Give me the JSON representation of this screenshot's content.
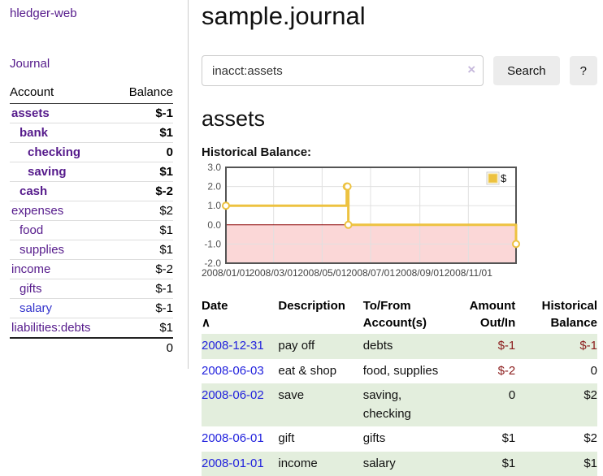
{
  "app": {
    "title": "hledger-web"
  },
  "sidebar": {
    "nav": {
      "journal_label": "Journal"
    },
    "table": {
      "headers": {
        "account": "Account",
        "balance": "Balance"
      },
      "accounts": [
        {
          "name": "assets",
          "indent": 0,
          "bold": true,
          "balance": "$-1",
          "neg": "strong",
          "blue": false
        },
        {
          "name": "bank",
          "indent": 1,
          "bold": true,
          "balance": "$1",
          "neg": "none",
          "blue": false
        },
        {
          "name": "checking",
          "indent": 2,
          "bold": true,
          "balance": "0",
          "neg": "none",
          "blue": false
        },
        {
          "name": "saving",
          "indent": 2,
          "bold": true,
          "balance": "$1",
          "neg": "none",
          "blue": false
        },
        {
          "name": "cash",
          "indent": 1,
          "bold": true,
          "balance": "$-2",
          "neg": "strong",
          "blue": false
        },
        {
          "name": "expenses",
          "indent": 0,
          "bold": false,
          "balance": "$2",
          "neg": "none",
          "blue": false
        },
        {
          "name": "food",
          "indent": 1,
          "bold": false,
          "balance": "$1",
          "neg": "none",
          "blue": false
        },
        {
          "name": "supplies",
          "indent": 1,
          "bold": false,
          "balance": "$1",
          "neg": "none",
          "blue": false
        },
        {
          "name": "income",
          "indent": 0,
          "bold": false,
          "balance": "$-2",
          "neg": "light",
          "blue": false
        },
        {
          "name": "gifts",
          "indent": 1,
          "bold": false,
          "balance": "$-1",
          "neg": "light",
          "blue": false
        },
        {
          "name": "salary",
          "indent": 1,
          "bold": false,
          "balance": "$-1",
          "neg": "light",
          "blue": true
        },
        {
          "name": "liabilities:debts",
          "indent": 0,
          "bold": false,
          "balance": "$1",
          "neg": "none",
          "blue": false
        }
      ],
      "total": "0"
    }
  },
  "main": {
    "title": "sample.journal",
    "search": {
      "value": "inacct:assets",
      "clear_icon": "×",
      "button_label": "Search",
      "help_label": "?"
    },
    "account_heading": "assets",
    "chart_heading": "Historical Balance:"
  },
  "chart_data": {
    "type": "line",
    "step": true,
    "title": "Historical Balance",
    "xlim": [
      "2008-01-01",
      "2008-12-31"
    ],
    "ylim": [
      -2,
      3
    ],
    "x_ticks": [
      "2008/01/01",
      "2008/03/01",
      "2008/05/01",
      "2008/07/01",
      "2008/09/01",
      "2008/11/01"
    ],
    "y_ticks": [
      "3.0",
      "2.0",
      "1.0",
      "0.0",
      "-1.0",
      "-2.0"
    ],
    "grid": true,
    "legend": {
      "label": "$",
      "position": "top-right"
    },
    "series": [
      {
        "name": "$",
        "color": "#edc240",
        "points": [
          [
            "2008-01-01",
            1
          ],
          [
            "2008-06-01",
            2
          ],
          [
            "2008-06-02",
            2
          ],
          [
            "2008-06-03",
            0
          ],
          [
            "2008-12-31",
            -1
          ]
        ]
      }
    ],
    "negative_region_color": "#fbd7d7",
    "zero_line_color": "#8b0000",
    "border_color": "#545454",
    "gridline_color": "#e0e0e0",
    "tick_label_color": "#545454"
  },
  "register": {
    "headers": [
      {
        "l1": "Date",
        "l2": "",
        "sort": "∧",
        "align": "left"
      },
      {
        "l1": "Description",
        "l2": "",
        "sort": "",
        "align": "left"
      },
      {
        "l1": "To/From",
        "l2": "Account(s)",
        "sort": "",
        "align": "left"
      },
      {
        "l1": "Amount",
        "l2": "Out/In",
        "sort": "",
        "align": "right"
      },
      {
        "l1": "Historical",
        "l2": "Balance",
        "sort": "",
        "align": "right"
      }
    ],
    "rows": [
      {
        "date": "2008-12-31",
        "description": "pay off",
        "accounts": "debts",
        "amount": "$-1",
        "amount_neg": true,
        "balance": "$-1",
        "balance_neg": true,
        "shade": true
      },
      {
        "date": "2008-06-03",
        "description": "eat & shop",
        "accounts": "food, supplies",
        "amount": "$-2",
        "amount_neg": true,
        "balance": "0",
        "balance_neg": false,
        "shade": false
      },
      {
        "date": "2008-06-02",
        "description": "save",
        "accounts": "saving,\nchecking",
        "amount": "0",
        "amount_neg": false,
        "balance": "$2",
        "balance_neg": false,
        "shade": true
      },
      {
        "date": "2008-06-01",
        "description": "gift",
        "accounts": "gifts",
        "amount": "$1",
        "amount_neg": false,
        "balance": "$2",
        "balance_neg": false,
        "shade": false
      },
      {
        "date": "2008-01-01",
        "description": "income",
        "accounts": "salary",
        "amount": "$1",
        "amount_neg": false,
        "balance": "$1",
        "balance_neg": false,
        "shade": true
      }
    ]
  },
  "colors": {
    "link_purple": "#551a8b",
    "link_blue_date": "#2222dd",
    "negative_strong": "#8b1c1c",
    "negative_light": "#c17f7f",
    "row_green": "#e3eedd",
    "button_gray": "#ececec",
    "series_yellow": "#edc240",
    "negative_region_pink": "#fbd7d7",
    "zero_line_red": "#8b0000"
  }
}
